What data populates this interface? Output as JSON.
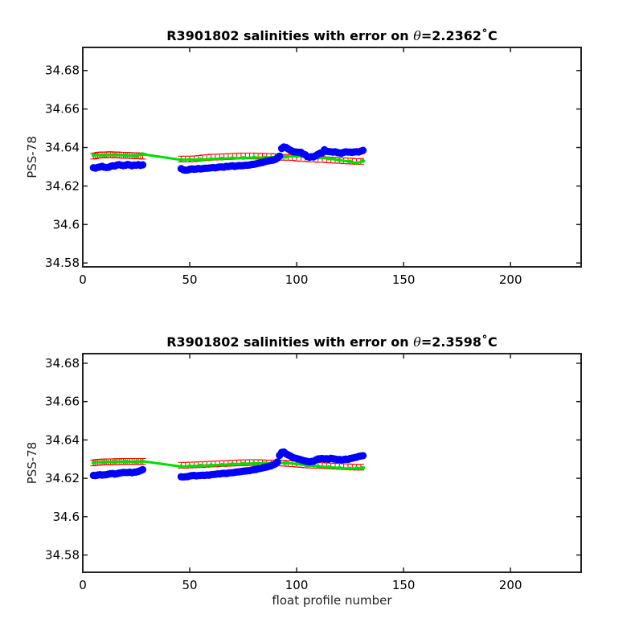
{
  "chart_data": [
    {
      "type": "scatter",
      "title_prefix": "R3901802 salinities with error on ",
      "title_theta": "θ",
      "title_suffix": "=2.2362˚C",
      "ylabel": "PSS-78",
      "xlabel": "",
      "xlim": [
        0,
        233
      ],
      "ylim": [
        34.578,
        34.692
      ],
      "xticks": [
        0,
        50,
        100,
        150,
        200
      ],
      "yticks": [
        34.58,
        34.6,
        34.62,
        34.64,
        34.66,
        34.68
      ],
      "ytick_labels": [
        "34.58",
        "34.6",
        "34.62",
        "34.64",
        "34.66",
        "34.68"
      ],
      "xtick_labels": [
        "0",
        "50",
        "100",
        "150",
        "200"
      ],
      "grid": false,
      "colors": {
        "float": "#0000ff",
        "mapped": "#00dd00",
        "error": "#ff0000"
      },
      "series": [
        {
          "role": "float-salinity",
          "x": [
            5,
            6,
            7,
            8,
            9,
            10,
            11,
            12,
            13,
            14,
            15,
            16,
            17,
            18,
            19,
            20,
            21,
            22,
            23,
            24,
            25,
            26,
            27,
            28,
            46,
            47,
            48,
            49,
            50,
            51,
            52,
            53,
            54,
            55,
            56,
            57,
            58,
            59,
            60,
            61,
            62,
            63,
            64,
            65,
            66,
            67,
            68,
            69,
            70,
            71,
            72,
            73,
            74,
            75,
            76,
            77,
            78,
            79,
            80,
            81,
            82,
            83,
            84,
            85,
            86,
            87,
            88,
            89,
            90,
            91,
            92,
            93,
            94,
            95,
            96,
            97,
            98,
            99,
            100,
            101,
            102,
            103,
            104,
            105,
            106,
            107,
            108,
            109,
            110,
            111,
            112,
            113,
            114,
            115,
            116,
            117,
            118,
            119,
            120,
            121,
            122,
            123,
            124,
            125,
            126,
            127,
            128,
            129,
            130,
            131
          ],
          "y": [
            34.6295,
            34.6293,
            34.6297,
            34.6299,
            34.6302,
            34.6298,
            34.6296,
            34.6297,
            34.6302,
            34.6305,
            34.6304,
            34.6309,
            34.6311,
            34.6308,
            34.6306,
            34.6308,
            34.6312,
            34.6309,
            34.6305,
            34.6309,
            34.6308,
            34.6311,
            34.6307,
            34.631,
            34.629,
            34.6284,
            34.6282,
            34.6283,
            34.6287,
            34.6289,
            34.6287,
            34.6288,
            34.6291,
            34.6289,
            34.629,
            34.6292,
            34.6292,
            34.6293,
            34.6295,
            34.6296,
            34.6294,
            34.6297,
            34.6299,
            34.6299,
            34.6298,
            34.6302,
            34.6301,
            34.6303,
            34.6305,
            34.6302,
            34.6304,
            34.6306,
            34.6305,
            34.6306,
            34.6308,
            34.6308,
            34.6309,
            34.6312,
            34.6313,
            34.6315,
            34.6318,
            34.632,
            34.6322,
            34.6326,
            34.6329,
            34.6331,
            34.6333,
            34.6335,
            34.6338,
            34.6345,
            34.6355,
            34.6395,
            34.6403,
            34.64,
            34.6393,
            34.6386,
            34.6381,
            34.6377,
            34.6376,
            34.6375,
            34.6375,
            34.6366,
            34.6362,
            34.6353,
            34.635,
            34.6352,
            34.6352,
            34.6358,
            34.6365,
            34.6371,
            34.6373,
            34.6388,
            34.638,
            34.6379,
            34.6378,
            34.6376,
            34.6378,
            34.6374,
            34.6372,
            34.6371,
            34.6375,
            34.6378,
            34.6376,
            34.6376,
            34.6375,
            34.6377,
            34.6378,
            34.6377,
            34.6381,
            34.6385
          ]
        },
        {
          "role": "mapped-salinity",
          "x": [
            5,
            10,
            15,
            20,
            25,
            28,
            46,
            50,
            55,
            60,
            65,
            70,
            75,
            80,
            85,
            90,
            95,
            100,
            105,
            110,
            115,
            120,
            125,
            128,
            131
          ],
          "y": [
            34.636,
            34.636,
            34.6362,
            34.636,
            34.6357,
            34.6365,
            34.6336,
            34.6337,
            34.6337,
            34.634,
            34.6342,
            34.6345,
            34.6346,
            34.6348,
            34.6348,
            34.635,
            34.6352,
            34.6355,
            34.6353,
            34.6347,
            34.6343,
            34.6334,
            34.6327,
            34.6318,
            34.633
          ]
        },
        {
          "role": "error-bars",
          "x": [
            5,
            6,
            7,
            8,
            9,
            10,
            11,
            12,
            13,
            14,
            15,
            16,
            17,
            18,
            19,
            20,
            21,
            22,
            23,
            24,
            25,
            26,
            27,
            28,
            46,
            48,
            50,
            52,
            54,
            56,
            58,
            60,
            62,
            64,
            66,
            68,
            70,
            72,
            74,
            76,
            78,
            80,
            82,
            84,
            86,
            88,
            90,
            92,
            94,
            96,
            98,
            100,
            102,
            104,
            106,
            108,
            110,
            112,
            114,
            116,
            118,
            120,
            122,
            124,
            126,
            128,
            130
          ],
          "y": [
            34.6355,
            34.6357,
            34.636,
            34.6361,
            34.6362,
            34.6361,
            34.6362,
            34.6363,
            34.6363,
            34.6362,
            34.6361,
            34.6362,
            34.6361,
            34.636,
            34.636,
            34.636,
            34.6359,
            34.6359,
            34.6358,
            34.6358,
            34.6357,
            34.6357,
            34.6356,
            34.6355,
            34.634,
            34.634,
            34.634,
            34.6341,
            34.6343,
            34.6346,
            34.6347,
            34.635,
            34.635,
            34.6351,
            34.6352,
            34.6353,
            34.6354,
            34.6355,
            34.6356,
            34.6356,
            34.6356,
            34.6356,
            34.6355,
            34.6355,
            34.6354,
            34.6354,
            34.6352,
            34.635,
            34.6349,
            34.6349,
            34.6348,
            34.6345,
            34.6343,
            34.6342,
            34.634,
            34.634,
            34.6338,
            34.6338,
            34.6336,
            34.6335,
            34.6334,
            34.6333,
            34.6331,
            34.633,
            34.6329,
            34.6327,
            34.6328
          ],
          "err": 0.0015
        }
      ]
    },
    {
      "type": "scatter",
      "title_prefix": "R3901802 salinities with error on ",
      "title_theta": "θ",
      "title_suffix": "=2.3598˚C",
      "ylabel": "PSS-78",
      "xlabel": "float profile number",
      "xlim": [
        0,
        233
      ],
      "ylim": [
        34.571,
        34.685
      ],
      "xticks": [
        0,
        50,
        100,
        150,
        200
      ],
      "yticks": [
        34.58,
        34.6,
        34.62,
        34.64,
        34.66,
        34.68
      ],
      "ytick_labels": [
        "34.58",
        "34.6",
        "34.62",
        "34.64",
        "34.66",
        "34.68"
      ],
      "xtick_labels": [
        "0",
        "50",
        "100",
        "150",
        "200"
      ],
      "grid": false,
      "colors": {
        "float": "#0000ff",
        "mapped": "#00dd00",
        "error": "#ff0000"
      },
      "series": [
        {
          "role": "float-salinity",
          "x": [
            5,
            6,
            7,
            8,
            9,
            10,
            11,
            12,
            13,
            14,
            15,
            16,
            17,
            18,
            19,
            20,
            21,
            22,
            23,
            24,
            25,
            26,
            27,
            28,
            46,
            47,
            48,
            49,
            50,
            51,
            52,
            53,
            54,
            55,
            56,
            57,
            58,
            59,
            60,
            61,
            62,
            63,
            64,
            65,
            66,
            67,
            68,
            69,
            70,
            71,
            72,
            73,
            74,
            75,
            76,
            77,
            78,
            79,
            80,
            81,
            82,
            83,
            84,
            85,
            86,
            87,
            88,
            89,
            90,
            91,
            92,
            93,
            94,
            95,
            96,
            97,
            98,
            99,
            100,
            101,
            102,
            103,
            104,
            105,
            106,
            107,
            108,
            109,
            110,
            111,
            112,
            113,
            114,
            115,
            116,
            117,
            118,
            119,
            120,
            121,
            122,
            123,
            124,
            125,
            126,
            127,
            128,
            129,
            130,
            131
          ],
          "y": [
            34.6215,
            34.6214,
            34.6217,
            34.6219,
            34.6217,
            34.6218,
            34.6219,
            34.6222,
            34.6224,
            34.6225,
            34.6222,
            34.6224,
            34.6227,
            34.6229,
            34.6231,
            34.623,
            34.623,
            34.6232,
            34.6229,
            34.6232,
            34.6233,
            34.6236,
            34.624,
            34.6245,
            34.6208,
            34.6207,
            34.6208,
            34.6209,
            34.6212,
            34.6214,
            34.6215,
            34.6213,
            34.6214,
            34.6215,
            34.6216,
            34.6215,
            34.6217,
            34.6216,
            34.6219,
            34.622,
            34.6221,
            34.6223,
            34.6223,
            34.6225,
            34.6226,
            34.6225,
            34.6227,
            34.6229,
            34.6229,
            34.6231,
            34.6233,
            34.6234,
            34.6235,
            34.6237,
            34.6238,
            34.6239,
            34.624,
            34.6243,
            34.6245,
            34.6246,
            34.625,
            34.6251,
            34.6254,
            34.6257,
            34.6259,
            34.6262,
            34.6265,
            34.627,
            34.6275,
            34.6285,
            34.632,
            34.6335,
            34.6337,
            34.6328,
            34.6322,
            34.6317,
            34.631,
            34.6306,
            34.6303,
            34.63,
            34.6297,
            34.6293,
            34.629,
            34.6288,
            34.6286,
            34.6288,
            34.6289,
            34.6296,
            34.6301,
            34.6302,
            34.6303,
            34.6301,
            34.6302,
            34.63,
            34.6304,
            34.6302,
            34.63,
            34.6298,
            34.6298,
            34.6296,
            34.6298,
            34.63,
            34.6299,
            34.6303,
            34.6305,
            34.6308,
            34.631,
            34.6314,
            34.6316,
            34.6318
          ]
        },
        {
          "role": "mapped-salinity",
          "x": [
            5,
            10,
            15,
            20,
            25,
            28,
            46,
            50,
            55,
            60,
            65,
            70,
            75,
            80,
            85,
            90,
            95,
            100,
            105,
            110,
            115,
            120,
            125,
            128,
            131
          ],
          "y": [
            34.6282,
            34.6285,
            34.6286,
            34.6287,
            34.6286,
            34.6289,
            34.6261,
            34.6263,
            34.6266,
            34.6268,
            34.627,
            34.6274,
            34.6276,
            34.6278,
            34.6278,
            34.628,
            34.628,
            34.6275,
            34.6268,
            34.6262,
            34.6258,
            34.6254,
            34.625,
            34.6252,
            34.6254
          ]
        },
        {
          "role": "error-bars",
          "x": [
            5,
            6,
            7,
            8,
            9,
            10,
            11,
            12,
            13,
            14,
            15,
            16,
            17,
            18,
            19,
            20,
            21,
            22,
            23,
            24,
            25,
            26,
            27,
            28,
            46,
            48,
            50,
            52,
            54,
            56,
            58,
            60,
            62,
            64,
            66,
            68,
            70,
            72,
            74,
            76,
            78,
            80,
            82,
            84,
            86,
            88,
            90,
            92,
            94,
            96,
            98,
            100,
            102,
            104,
            106,
            108,
            110,
            112,
            114,
            116,
            118,
            120,
            122,
            124,
            126,
            128,
            130
          ],
          "y": [
            34.628,
            34.6282,
            34.6283,
            34.6284,
            34.6285,
            34.6285,
            34.6286,
            34.6286,
            34.6286,
            34.6286,
            34.6287,
            34.6287,
            34.6287,
            34.6287,
            34.6288,
            34.6288,
            34.6288,
            34.6288,
            34.6288,
            34.6288,
            34.6288,
            34.6288,
            34.6288,
            34.6288,
            34.6268,
            34.6268,
            34.6269,
            34.627,
            34.6271,
            34.6272,
            34.6273,
            34.6274,
            34.6275,
            34.6276,
            34.6277,
            34.6278,
            34.6279,
            34.628,
            34.6281,
            34.6281,
            34.6282,
            34.6282,
            34.6282,
            34.6281,
            34.628,
            34.628,
            34.628,
            34.628,
            34.6279,
            34.6277,
            34.6276,
            34.6274,
            34.6272,
            34.627,
            34.6269,
            34.6268,
            34.6267,
            34.6266,
            34.6265,
            34.6264,
            34.6263,
            34.6262,
            34.6261,
            34.626,
            34.6259,
            34.6258,
            34.6258
          ],
          "err": 0.0015
        }
      ]
    }
  ]
}
